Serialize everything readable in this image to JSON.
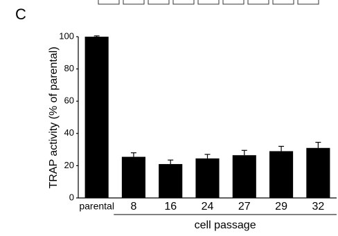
{
  "chart_data": {
    "type": "bar",
    "panel_label": "C",
    "y_label": "TRAP activity (% of parental)",
    "x_group_label": "cell passage",
    "categories": [
      "parental",
      "8",
      "16",
      "24",
      "27",
      "29",
      "32"
    ],
    "values": [
      100,
      25.5,
      21,
      24.5,
      26.5,
      29,
      31
    ],
    "errors": [
      0.5,
      2.5,
      2.5,
      2.5,
      3,
      3,
      3.5
    ],
    "color": "#000000",
    "ylim": [
      0,
      100
    ],
    "yticks": [
      0,
      20,
      40,
      60,
      80,
      100
    ],
    "grid": false
  }
}
